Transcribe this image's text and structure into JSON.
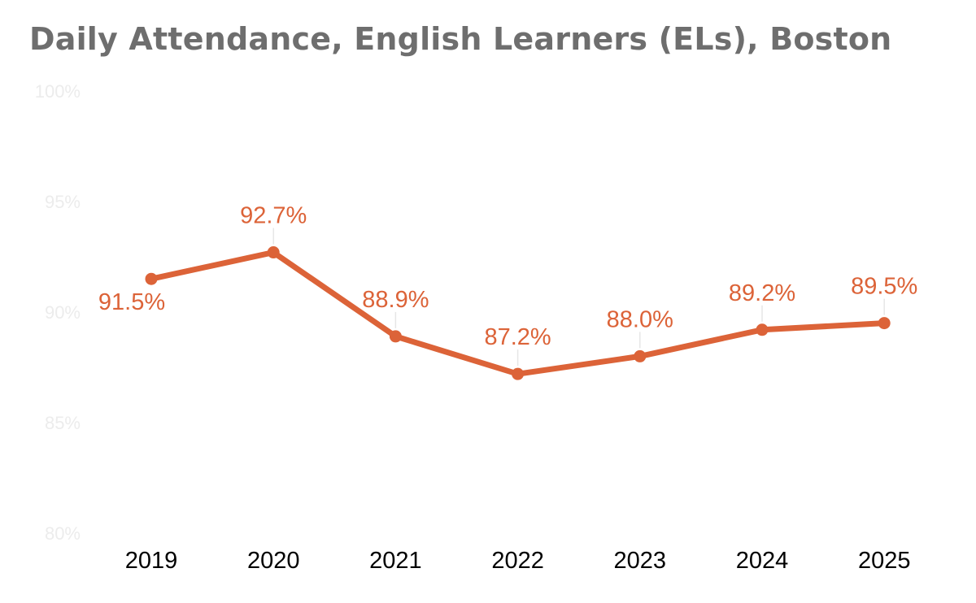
{
  "chart_data": {
    "type": "line",
    "title": "Daily Attendance, English Learners (ELs), Boston",
    "xlabel": "",
    "ylabel": "",
    "categories": [
      "2019",
      "2020",
      "2021",
      "2022",
      "2023",
      "2024",
      "2025"
    ],
    "series": [
      {
        "name": "English Learners (ELs)",
        "values": [
          91.5,
          92.7,
          88.9,
          87.2,
          88.0,
          89.2,
          89.5
        ],
        "labels": [
          "91.5%",
          "92.7%",
          "88.9%",
          "87.2%",
          "88.0%",
          "89.2%",
          "89.5%"
        ],
        "color": "#dc6338"
      }
    ],
    "ylim": [
      80,
      100
    ],
    "yticks": [
      100,
      95,
      90,
      85,
      80
    ],
    "ytick_labels": [
      "100%",
      "95%",
      "90%",
      "85%",
      "80%"
    ],
    "grid": false,
    "legend": "none"
  },
  "colors": {
    "title": "#6e6e6e",
    "line": "#dc6338",
    "ytick_text": "#ececec",
    "xtick_text": "#000000",
    "leader_line": "#e6e6e6"
  }
}
